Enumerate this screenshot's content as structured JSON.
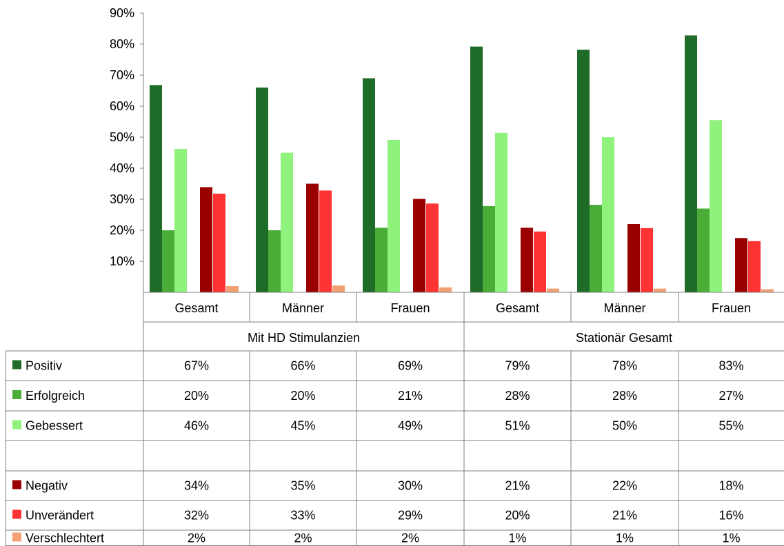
{
  "chart_data": {
    "type": "bar",
    "ylim": [
      0,
      90
    ],
    "yticks": [
      "10%",
      "20%",
      "30%",
      "40%",
      "50%",
      "60%",
      "70%",
      "80%",
      "90%"
    ],
    "groups": [
      {
        "label": "Mit HD Stimulanzien",
        "categories": [
          "Gesamt",
          "Männer",
          "Frauen"
        ]
      },
      {
        "label": "Stationär Gesamt",
        "categories": [
          "Gesamt",
          "Männer",
          "Frauen"
        ]
      }
    ],
    "series": [
      {
        "name": "Positiv",
        "color": "#1f6b28",
        "values": [
          66.8,
          66.0,
          69.0,
          79.2,
          78.2,
          82.8
        ],
        "labels": [
          "67%",
          "66%",
          "69%",
          "79%",
          "78%",
          "83%"
        ]
      },
      {
        "name": "Erfolgreich",
        "color": "#4aad38",
        "values": [
          20.0,
          20.0,
          20.8,
          27.8,
          28.2,
          27.0
        ],
        "labels": [
          "20%",
          "20%",
          "21%",
          "28%",
          "28%",
          "27%"
        ]
      },
      {
        "name": "Gebessert",
        "color": "#8ef27c",
        "values": [
          46.2,
          45.0,
          49.1,
          51.4,
          50.0,
          55.5
        ],
        "labels": [
          "46%",
          "45%",
          "49%",
          "51%",
          "50%",
          "55%"
        ]
      },
      {
        "name": "",
        "color": "",
        "values": [],
        "labels": [
          "",
          "",
          "",
          "",
          "",
          ""
        ]
      },
      {
        "name": "Negativ",
        "color": "#9b0000",
        "values": [
          33.9,
          35.0,
          30.1,
          20.8,
          22.0,
          17.5
        ],
        "labels": [
          "34%",
          "35%",
          "30%",
          "21%",
          "22%",
          "18%"
        ]
      },
      {
        "name": "Unverändert",
        "color": "#ff3333",
        "values": [
          31.8,
          32.8,
          28.6,
          19.6,
          20.7,
          16.5
        ],
        "labels": [
          "32%",
          "33%",
          "29%",
          "20%",
          "21%",
          "16%"
        ]
      },
      {
        "name": "Verschlechtert",
        "color": "#f4a075",
        "values": [
          2.0,
          2.2,
          1.6,
          1.2,
          1.2,
          1.0
        ],
        "labels": [
          "2%",
          "2%",
          "2%",
          "1%",
          "1%",
          "1%"
        ]
      }
    ]
  }
}
